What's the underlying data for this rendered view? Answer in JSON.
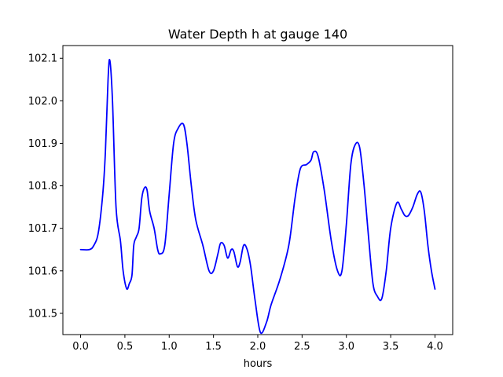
{
  "chart_data": {
    "type": "line",
    "title": "Water Depth h at gauge 140",
    "xlabel": "hours",
    "ylabel": "",
    "xlim": [
      -0.2,
      4.2
    ],
    "ylim": [
      101.45,
      102.13
    ],
    "x_ticks": [
      {
        "value": 0.0,
        "label": "0.0"
      },
      {
        "value": 0.5,
        "label": "0.5"
      },
      {
        "value": 1.0,
        "label": "1.0"
      },
      {
        "value": 1.5,
        "label": "1.5"
      },
      {
        "value": 2.0,
        "label": "2.0"
      },
      {
        "value": 2.5,
        "label": "2.5"
      },
      {
        "value": 3.0,
        "label": "3.0"
      },
      {
        "value": 3.5,
        "label": "3.5"
      },
      {
        "value": 4.0,
        "label": "4.0"
      }
    ],
    "y_ticks": [
      {
        "value": 101.5,
        "label": "101.5"
      },
      {
        "value": 101.6,
        "label": "101.6"
      },
      {
        "value": 101.7,
        "label": "101.7"
      },
      {
        "value": 101.8,
        "label": "101.8"
      },
      {
        "value": 101.9,
        "label": "101.9"
      },
      {
        "value": 102.0,
        "label": "102.0"
      },
      {
        "value": 102.1,
        "label": "102.1"
      }
    ],
    "grid": false,
    "legend": "none",
    "series": [
      {
        "color": "#0000ff",
        "x": [
          0.0,
          0.1,
          0.15,
          0.2,
          0.25,
          0.28,
          0.31,
          0.33,
          0.36,
          0.4,
          0.45,
          0.48,
          0.52,
          0.55,
          0.58,
          0.6,
          0.63,
          0.66,
          0.69,
          0.72,
          0.75,
          0.78,
          0.83,
          0.87,
          0.9,
          0.95,
          1.0,
          1.05,
          1.1,
          1.16,
          1.2,
          1.25,
          1.3,
          1.38,
          1.45,
          1.5,
          1.55,
          1.58,
          1.62,
          1.66,
          1.7,
          1.73,
          1.77,
          1.8,
          1.84,
          1.88,
          1.92,
          1.97,
          2.03,
          2.1,
          2.15,
          2.25,
          2.35,
          2.42,
          2.48,
          2.55,
          2.6,
          2.63,
          2.68,
          2.75,
          2.83,
          2.9,
          2.95,
          3.0,
          3.05,
          3.1,
          3.15,
          3.2,
          3.25,
          3.3,
          3.35,
          3.4,
          3.45,
          3.5,
          3.57,
          3.62,
          3.66,
          3.7,
          3.75,
          3.8,
          3.84,
          3.88,
          3.92,
          3.96,
          4.0
        ],
        "y": [
          101.65,
          101.65,
          101.66,
          101.69,
          101.78,
          101.88,
          102.05,
          102.095,
          102.0,
          101.75,
          101.67,
          101.6,
          101.558,
          101.57,
          101.59,
          101.66,
          101.68,
          101.7,
          101.77,
          101.795,
          101.79,
          101.74,
          101.7,
          101.65,
          101.64,
          101.66,
          101.78,
          101.9,
          101.935,
          101.945,
          101.9,
          101.8,
          101.72,
          101.66,
          101.6,
          101.6,
          101.64,
          101.665,
          101.66,
          101.63,
          101.65,
          101.645,
          101.61,
          101.62,
          101.66,
          101.65,
          101.61,
          101.53,
          101.455,
          101.48,
          101.52,
          101.58,
          101.66,
          101.77,
          101.84,
          101.85,
          101.86,
          101.88,
          101.87,
          101.79,
          101.67,
          101.6,
          101.6,
          101.71,
          101.85,
          101.897,
          101.89,
          101.8,
          101.68,
          101.57,
          101.54,
          101.535,
          101.6,
          101.7,
          101.76,
          101.745,
          101.73,
          101.73,
          101.75,
          101.78,
          101.785,
          101.74,
          101.66,
          101.6,
          101.557
        ]
      }
    ]
  }
}
